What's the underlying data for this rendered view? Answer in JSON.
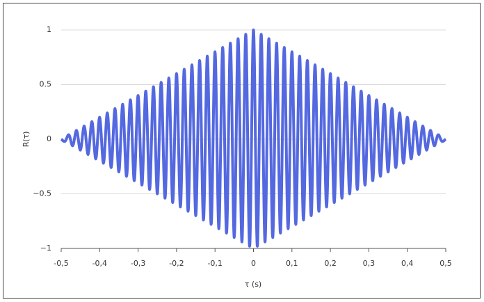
{
  "chart_data": {
    "type": "line",
    "x_label": "τ (s)",
    "y_label": "R(τ)",
    "x": [
      -0.5,
      -0.49,
      -0.48,
      -0.47,
      -0.46,
      -0.45,
      -0.44,
      -0.43,
      -0.42,
      -0.41,
      -0.4,
      -0.39,
      -0.38,
      -0.37,
      -0.36,
      -0.35,
      -0.34,
      -0.33,
      -0.32,
      -0.31,
      -0.3,
      -0.29,
      -0.28,
      -0.27,
      -0.26,
      -0.25,
      -0.24,
      -0.23,
      -0.22,
      -0.21,
      -0.2,
      -0.19,
      -0.18,
      -0.17,
      -0.16,
      -0.15,
      -0.14,
      -0.13,
      -0.12,
      -0.11,
      -0.1,
      -0.09,
      -0.08,
      -0.07,
      -0.06,
      -0.05,
      -0.04,
      -0.03,
      -0.02,
      -0.01,
      0,
      0.01,
      0.02,
      0.03,
      0.04,
      0.05,
      0.06,
      0.07,
      0.08,
      0.09,
      0.1,
      0.11,
      0.12,
      0.13,
      0.14,
      0.15,
      0.16,
      0.17,
      0.18,
      0.19,
      0.2,
      0.21,
      0.22,
      0.23,
      0.24,
      0.25,
      0.26,
      0.27,
      0.28,
      0.29,
      0.3,
      0.31,
      0.32,
      0.33,
      0.34,
      0.35,
      0.36,
      0.37,
      0.38,
      0.39,
      0.4,
      0.41,
      0.42,
      0.43,
      0.44,
      0.45,
      0.46,
      0.47,
      0.48,
      0.49,
      0.5
    ],
    "series": [
      {
        "color": "#5468e0",
        "values": [
          0,
          -0.02,
          0.04,
          -0.06,
          0.08,
          -0.1,
          0.12,
          -0.14,
          0.16,
          -0.18,
          0.2,
          -0.22,
          0.24,
          -0.26,
          0.28,
          -0.3,
          0.32,
          -0.34,
          0.36,
          -0.38,
          0.4,
          -0.42,
          0.44,
          -0.46,
          0.48,
          -0.5,
          0.52,
          -0.54,
          0.56,
          -0.58,
          0.6,
          -0.62,
          0.64,
          -0.66,
          0.68,
          -0.7,
          0.72,
          -0.74,
          0.76,
          -0.78,
          0.8,
          -0.82,
          0.84,
          -0.86,
          0.88,
          -0.9,
          0.92,
          -0.94,
          0.96,
          -0.98,
          1,
          -0.98,
          0.96,
          -0.94,
          0.92,
          -0.9,
          0.88,
          -0.86,
          0.84,
          -0.82,
          0.8,
          -0.78,
          0.76,
          -0.74,
          0.72,
          -0.7,
          0.68,
          -0.66,
          0.64,
          -0.62,
          0.6,
          -0.58,
          0.56,
          -0.54,
          0.52,
          -0.5,
          0.48,
          -0.46,
          0.44,
          -0.42,
          0.4,
          -0.38,
          0.36,
          -0.34,
          0.32,
          -0.3,
          0.28,
          -0.26,
          0.24,
          -0.22,
          0.2,
          -0.18,
          0.16,
          -0.14,
          0.12,
          -0.1,
          0.08,
          -0.06,
          0.04,
          -0.02,
          0
        ]
      }
    ],
    "xlim": [
      -0.5,
      0.5
    ],
    "xticks": [
      {
        "value": -0.5,
        "label": "-0,5"
      },
      {
        "value": -0.4,
        "label": "-0,4"
      },
      {
        "value": -0.3,
        "label": "-0,3"
      },
      {
        "value": -0.2,
        "label": "-0,2"
      },
      {
        "value": -0.1,
        "label": "-0,1"
      },
      0,
      {
        "value": 0.1,
        "label": "0,1"
      },
      {
        "value": 0.2,
        "label": "0,2"
      },
      {
        "value": 0.3,
        "label": "0,3"
      },
      {
        "value": 0.4,
        "label": "0,4"
      },
      {
        "value": 0.5,
        "label": "0,5"
      }
    ],
    "ylim": [
      -1,
      1
    ],
    "yticks": [
      {
        "value": -1,
        "label": "−1"
      },
      {
        "value": -0.5,
        "label": "−0.5"
      },
      0,
      0.5,
      1
    ],
    "grid": true
  }
}
